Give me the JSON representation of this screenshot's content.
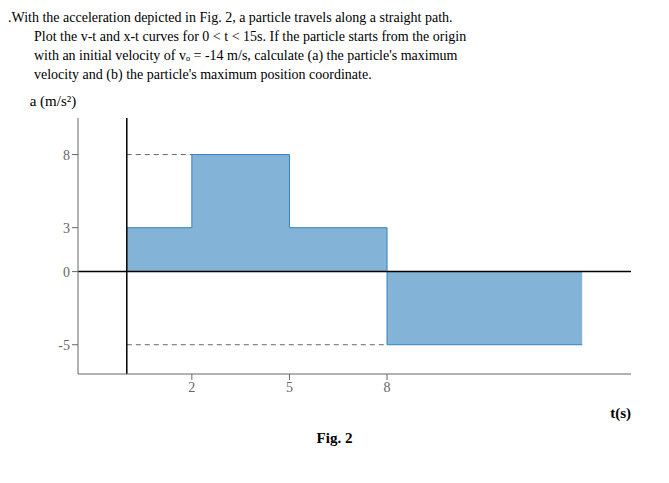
{
  "chart_data": {
    "type": "histogram",
    "title": ".With the acceleration depicted in Fig. 2, a particle travels along a straight path.\nPlot the v-t and x-t curves for 0 < t < 15s. If the particle starts from the origin\nwith an initial velocity of vₒ = -14 m/s, calculate (a) the particle's maximum\nvelocity and (b) the particle's maximum position coordinate.",
    "x_label": "t(s)",
    "y_label": "a (m/s²)",
    "caption": "Fig. 2",
    "bins": [
      0,
      2,
      5,
      8,
      14
    ],
    "values": [
      3,
      8,
      3,
      -5
    ],
    "xlim": [
      -1.5,
      15.5
    ],
    "ylim": [
      -7,
      10.5
    ],
    "xticks": [
      2,
      5,
      8
    ],
    "yticks": [
      -5,
      0,
      3,
      8
    ],
    "grid": false
  }
}
